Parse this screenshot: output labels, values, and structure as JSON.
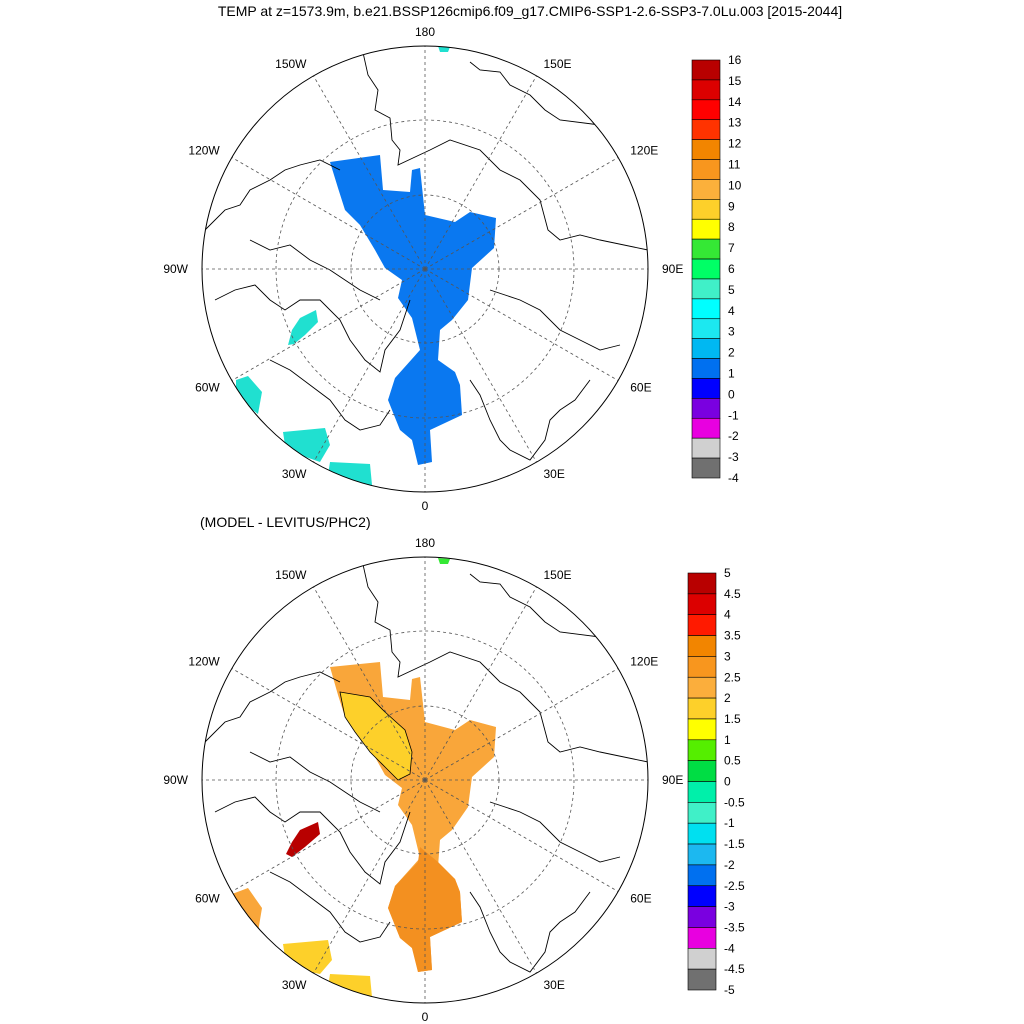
{
  "title": "TEMP at z=1573.9m, b.e21.BSSP126cmip6.f09_g17.CMIP6-SSP1-2.6-SSP3-7.0Lu.003 [2015-2044]",
  "maps": [
    {
      "subtitle": "",
      "longitude_labels": [
        "180",
        "150E",
        "120E",
        "90E",
        "60E",
        "30E",
        "0",
        "30W",
        "60W",
        "90W",
        "120W",
        "150W"
      ],
      "colorbar": {
        "labels": [
          "16",
          "15",
          "14",
          "13",
          "12",
          "11",
          "10",
          "9",
          "8",
          "7",
          "6",
          "5",
          "4",
          "3",
          "2",
          "1",
          "0",
          "-1",
          "-2",
          "-3",
          "-4"
        ],
        "colors": [
          "#b80000",
          "#dc0000",
          "#ff0000",
          "#ff3300",
          "#f28500",
          "#f8961e",
          "#fbb03b",
          "#fdd02a",
          "#ffff00",
          "#35e835",
          "#00ff66",
          "#40f0c8",
          "#00ffff",
          "#1ce8f0",
          "#00b8f2",
          "#0070f0",
          "#0000ff",
          "#7a00e0",
          "#e800e0",
          "#d0d0d0",
          "#707070"
        ]
      }
    },
    {
      "subtitle": "(MODEL - LEVITUS/PHC2)",
      "longitude_labels": [
        "180",
        "150E",
        "120E",
        "90E",
        "60E",
        "30E",
        "0",
        "30W",
        "60W",
        "90W",
        "120W",
        "150W"
      ],
      "colorbar": {
        "labels": [
          "5",
          "4.5",
          "4",
          "3.5",
          "3",
          "2.5",
          "2",
          "1.5",
          "1",
          "0.5",
          "0",
          "-0.5",
          "-1",
          "-1.5",
          "-2",
          "-2.5",
          "-3",
          "-3.5",
          "-4",
          "-4.5",
          "-5"
        ],
        "colors": [
          "#b80000",
          "#dc0000",
          "#ff1a00",
          "#f28500",
          "#f8961e",
          "#fbae3c",
          "#fdd02a",
          "#ffff00",
          "#55ee00",
          "#00dd44",
          "#00f0aa",
          "#40f0c8",
          "#00e0f0",
          "#1cb8f0",
          "#0070f0",
          "#0000ff",
          "#7a00e0",
          "#e800e0",
          "#d0d0d0",
          "#707070"
        ]
      }
    }
  ]
}
